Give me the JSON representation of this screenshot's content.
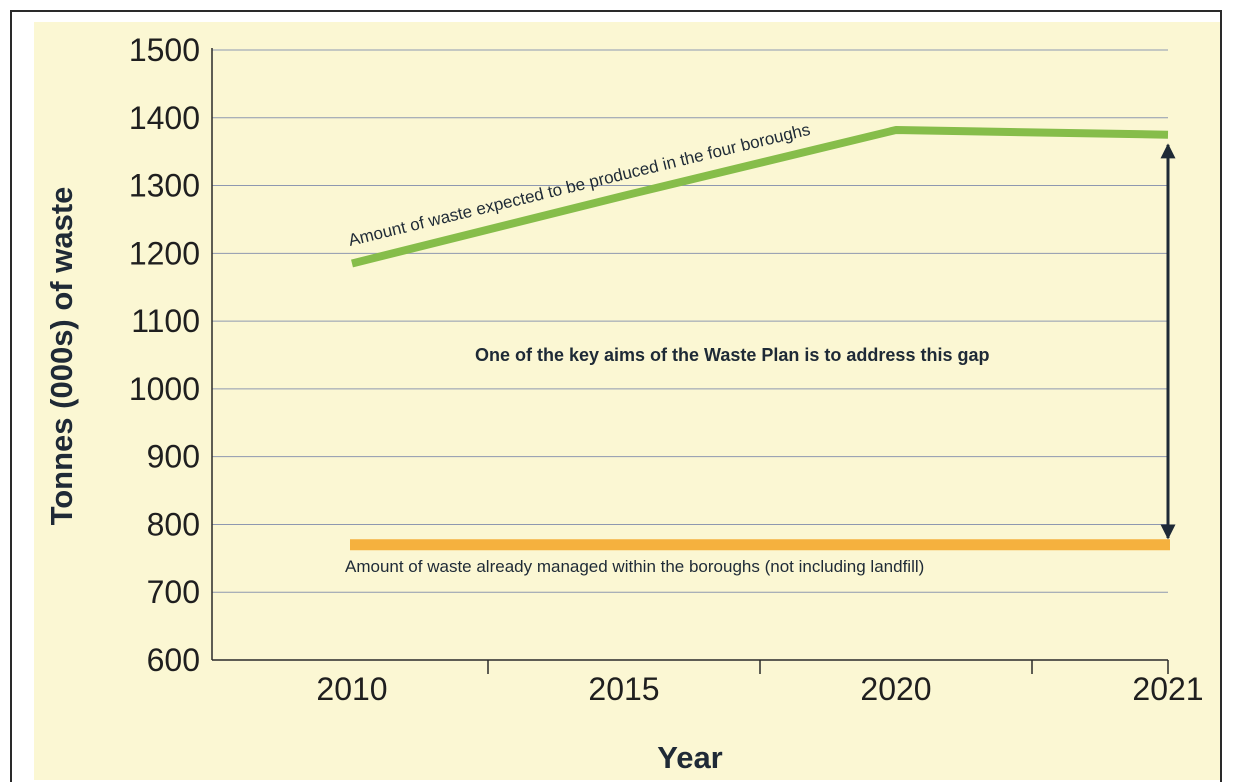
{
  "chart_data": {
    "type": "line",
    "xlabel": "Year",
    "ylabel": "Tonnes (000s) of waste",
    "x": [
      "2010",
      "2015",
      "2020",
      "2021"
    ],
    "ylim": [
      600,
      1500
    ],
    "yticks": [
      600,
      700,
      800,
      900,
      1000,
      1100,
      1200,
      1300,
      1400,
      1500
    ],
    "grid": true,
    "series": [
      {
        "name": "Amount of waste expected to be produced in the four boroughs",
        "color": "#86bd4a",
        "values": [
          1185,
          1285,
          1382,
          1375
        ]
      },
      {
        "name": "Amount of waste already managed within the boroughs (not including landfill)",
        "color": "#f5b13e",
        "values": [
          770,
          770,
          770,
          770
        ]
      }
    ],
    "annotation": {
      "text": "One of the key aims of the Waste Plan is to address this gap",
      "from": 1360,
      "to": 780
    }
  }
}
